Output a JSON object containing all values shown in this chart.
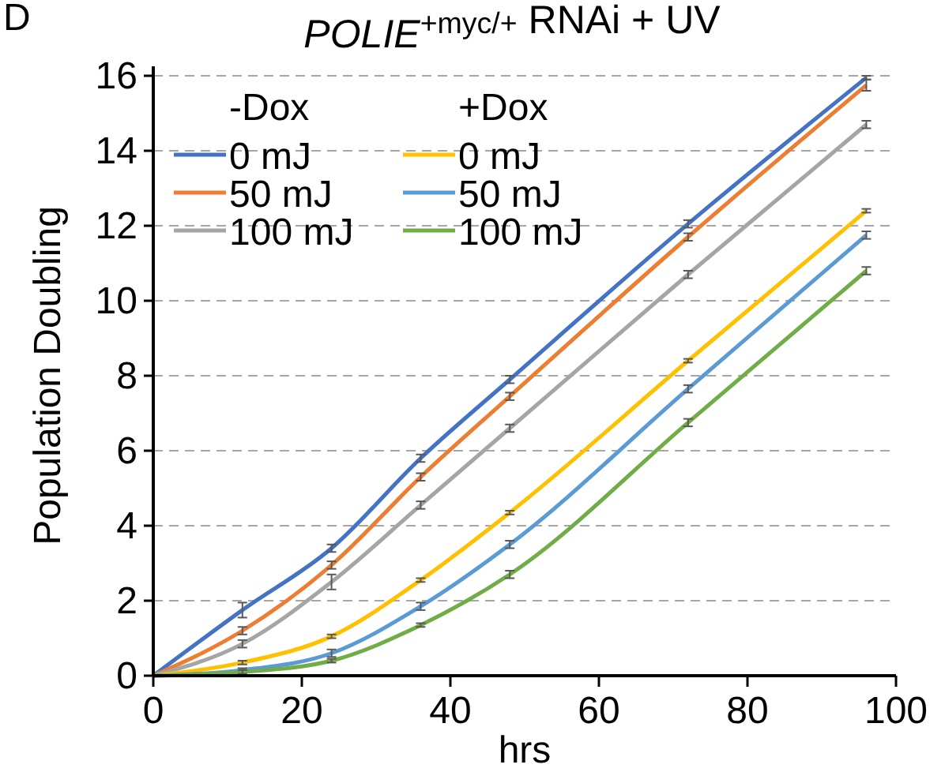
{
  "chart_data": {
    "type": "line",
    "title": "POLIE$^{+myc/+}$ RNAi + UV",
    "xlabel": "hrs",
    "ylabel": "Population Doubling",
    "annotations": [
      "D",
      "-Dox",
      "+Dox"
    ],
    "x": [
      0,
      12,
      24,
      36,
      48,
      72,
      96
    ],
    "series": [
      {
        "name": "0 mJ",
        "color": "#4472c4",
        "values": [
          0,
          1.75,
          3.4,
          5.8,
          7.9,
          12.05,
          15.95
        ],
        "errors": [
          0,
          0.2,
          0.1,
          0.1,
          0.1,
          0.1,
          0.05
        ]
      },
      {
        "name": "50 mJ",
        "color": "#ed7d31",
        "values": [
          0,
          1.2,
          2.95,
          5.3,
          7.45,
          11.7,
          15.75
        ],
        "errors": [
          0,
          0.1,
          0.1,
          0.1,
          0.1,
          0.1,
          0.15
        ]
      },
      {
        "name": "100 mJ",
        "color": "#a5a5a5",
        "values": [
          0,
          0.85,
          2.5,
          4.55,
          6.6,
          10.7,
          14.7
        ],
        "errors": [
          0,
          0.1,
          0.2,
          0.1,
          0.1,
          0.1,
          0.1
        ]
      },
      {
        "name": "0 mJ",
        "color": "#ffc000",
        "values": [
          0,
          0.35,
          1.05,
          2.55,
          4.35,
          8.4,
          12.4
        ],
        "errors": [
          0,
          0.05,
          0.05,
          0.05,
          0.05,
          0.05,
          0.05
        ]
      },
      {
        "name": "50 mJ",
        "color": "#5b9bd5",
        "values": [
          0,
          0.15,
          0.6,
          1.85,
          3.5,
          7.65,
          11.75
        ],
        "errors": [
          0,
          0.05,
          0.1,
          0.1,
          0.1,
          0.1,
          0.1
        ]
      },
      {
        "name": "100 mJ",
        "color": "#70ad47",
        "values": [
          0,
          0.1,
          0.4,
          1.35,
          2.7,
          6.75,
          10.8
        ],
        "errors": [
          0,
          0.05,
          0.05,
          0.05,
          0.1,
          0.1,
          0.1
        ]
      }
    ],
    "xlim": [
      0,
      100
    ],
    "xticks": [
      0,
      20,
      40,
      60,
      80,
      100
    ],
    "ylim": [
      0,
      16
    ],
    "yticks": [
      0,
      2,
      4,
      6,
      8,
      10,
      12,
      14,
      16
    ],
    "grid": "y",
    "legend": "top left",
    "marker": "none",
    "line_style": "solid"
  }
}
